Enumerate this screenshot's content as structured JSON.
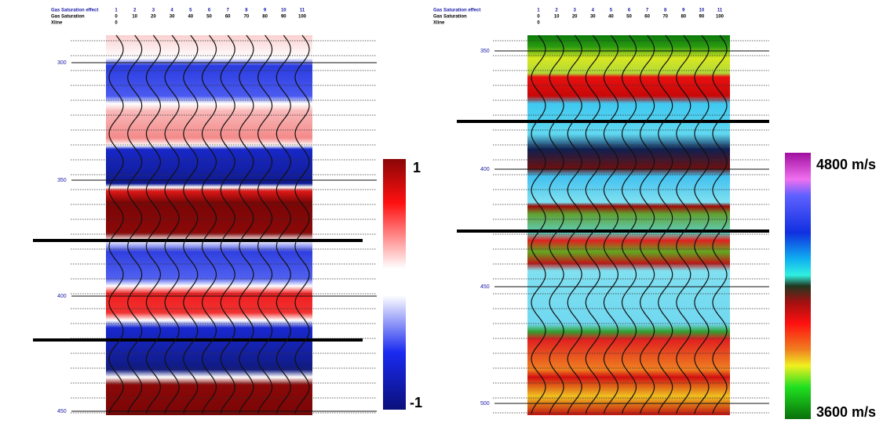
{
  "left_panel": {
    "header": {
      "effect_label": "Gas Saturation  effect",
      "saturation_label": "Gas Saturation",
      "xline_label": "Xline"
    },
    "traces": [
      "1",
      "2",
      "3",
      "4",
      "5",
      "6",
      "7",
      "8",
      "9",
      "10",
      "11"
    ],
    "saturations": [
      "0",
      "10",
      "20",
      "30",
      "40",
      "50",
      "60",
      "70",
      "80",
      "90",
      "100"
    ],
    "xline": "0",
    "depths": [
      "300",
      "350",
      "400",
      "450"
    ]
  },
  "left_colorbar": {
    "max_label": "1",
    "min_label": "-1"
  },
  "right_panel": {
    "header": {
      "effect_label": "Gas Saturation  effect",
      "saturation_label": "Gas Saturation",
      "xline_label": "Xline"
    },
    "traces": [
      "1",
      "2",
      "3",
      "4",
      "5",
      "6",
      "7",
      "8",
      "9",
      "10",
      "11"
    ],
    "saturations": [
      "0",
      "10",
      "20",
      "30",
      "40",
      "50",
      "60",
      "70",
      "80",
      "90",
      "100"
    ],
    "xline": "0",
    "depths": [
      "350",
      "400",
      "450",
      "500"
    ]
  },
  "right_colorbar": {
    "max_label": "4800 m/s",
    "min_label": "3600 m/s"
  }
}
